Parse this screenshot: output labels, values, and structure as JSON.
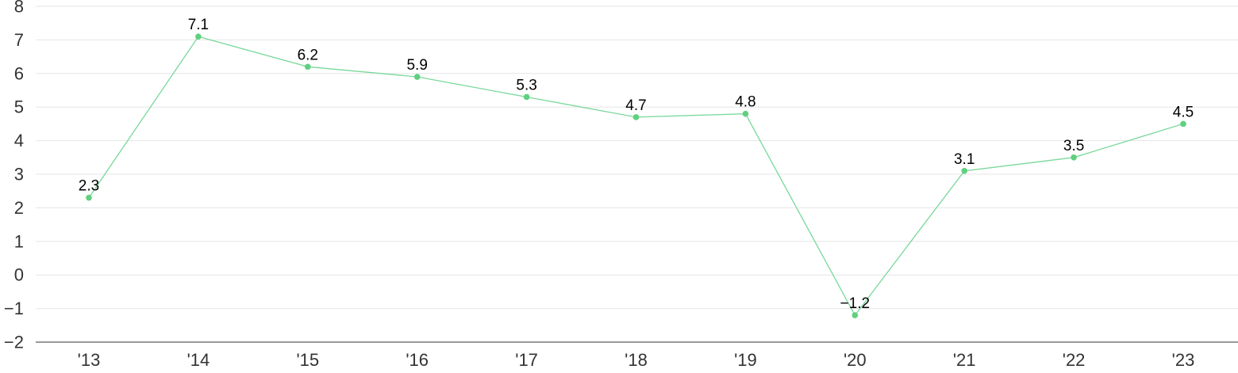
{
  "chart_data": {
    "type": "line",
    "categories": [
      "'13",
      "'14",
      "'15",
      "'16",
      "'17",
      "'18",
      "'19",
      "'20",
      "'21",
      "'22",
      "'23"
    ],
    "series": [
      {
        "values": [
          2.3,
          7.1,
          6.2,
          5.9,
          5.3,
          4.7,
          4.8,
          -1.2,
          3.1,
          3.5,
          4.5
        ],
        "labels": [
          "2.3",
          "7.1",
          "6.2",
          "5.9",
          "5.3",
          "4.7",
          "4.8",
          "−1.2",
          "3.1",
          "3.5",
          "4.5"
        ]
      }
    ],
    "yticks": [
      "8",
      "7",
      "6",
      "5",
      "4",
      "3",
      "2",
      "1",
      "0",
      "−1",
      "−2"
    ],
    "ytick_values": [
      8,
      7,
      6,
      5,
      4,
      3,
      2,
      1,
      0,
      -1,
      -2
    ],
    "ylim": [
      -2,
      8
    ],
    "grid": true,
    "legend": "none",
    "colors": {
      "line": "#79d89a",
      "marker": "#5fd07f",
      "grid": "#e6e6e6",
      "axis": "#333333",
      "tick_text": "#333333",
      "label_text": "#000000"
    }
  }
}
